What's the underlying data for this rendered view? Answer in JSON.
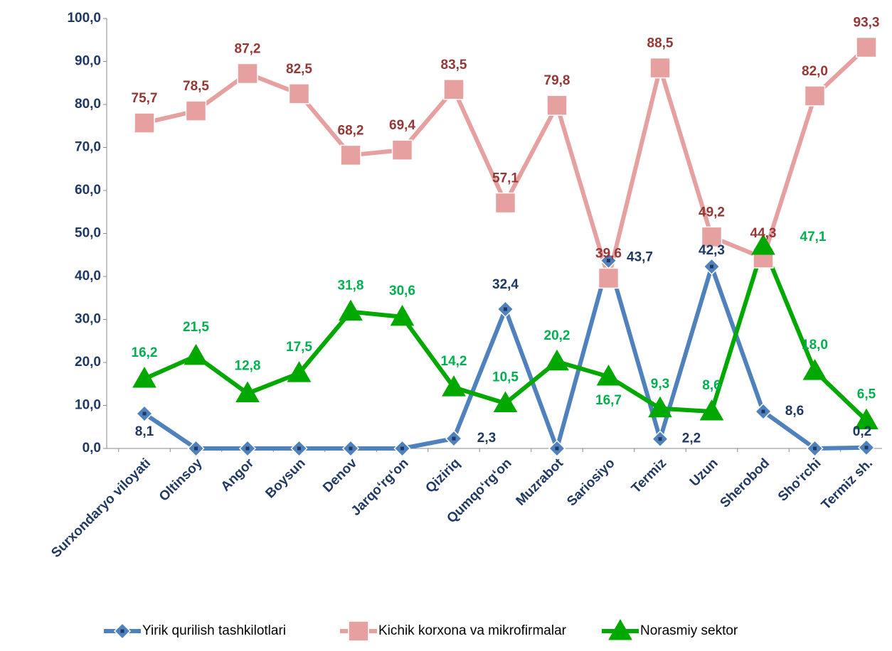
{
  "chart_data": {
    "type": "line",
    "categories": [
      "Surxondaryo viloyati",
      "Oltinsoy",
      "Angor",
      "Boysun",
      "Denov",
      "Jarqo‘rg‘on",
      "Qiziriq",
      "Qumqo‘rg‘on",
      "Muzrabot",
      "Sariosiyo",
      "Termiz",
      "Uzun",
      "Sherobod",
      "Sho‘rchi",
      "Termiz sh."
    ],
    "series": [
      {
        "name": "Yirik qurilish tashkilotlari",
        "color": "#4f81bd",
        "label_color": "#1f3864",
        "marker": "diamond",
        "values": [
          8.1,
          0,
          0,
          0,
          0,
          0,
          2.3,
          32.4,
          0,
          43.7,
          2.2,
          42.3,
          8.6,
          0,
          0.2
        ],
        "value_labels": [
          "8,1",
          null,
          null,
          null,
          null,
          null,
          "2,3",
          "32,4",
          null,
          "43,7",
          "2,2",
          "42,3",
          "8,6",
          null,
          "0,2"
        ]
      },
      {
        "name": "Kichik korxona va mikrofirmalar",
        "color": "#e6a0a0",
        "label_color": "#953735",
        "marker": "square",
        "values": [
          75.7,
          78.5,
          87.2,
          82.5,
          68.2,
          69.4,
          83.5,
          57.1,
          79.8,
          39.6,
          88.5,
          49.2,
          44.3,
          82.0,
          93.3
        ],
        "value_labels": [
          "75,7",
          "78,5",
          "87,2",
          "82,5",
          "68,2",
          "69,4",
          "83,5",
          "57,1",
          "79,8",
          "39,6",
          "88,5",
          "49,2",
          "44,3",
          "82,0",
          "93,3"
        ]
      },
      {
        "name": "Norasmiy sektor",
        "color": "#00a800",
        "label_color": "#00b050",
        "marker": "triangle",
        "values": [
          16.2,
          21.5,
          12.8,
          17.5,
          31.8,
          30.6,
          14.2,
          10.5,
          20.2,
          16.7,
          9.3,
          8.6,
          47.1,
          18.0,
          6.5
        ],
        "value_labels": [
          "16,2",
          "21,5",
          "12,8",
          "17,5",
          "31,8",
          "30,6",
          "14,2",
          "10,5",
          "20,2",
          "16,7",
          "9,3",
          "8,6",
          "47,1",
          "18,0",
          "6,5"
        ]
      }
    ],
    "ylim": [
      0,
      100
    ],
    "yticks": [
      {
        "value": 0,
        "label": "0,0"
      },
      {
        "value": 10,
        "label": "10,0"
      },
      {
        "value": 20,
        "label": "20,0"
      },
      {
        "value": 30,
        "label": "30,0"
      },
      {
        "value": 40,
        "label": "40,0"
      },
      {
        "value": 50,
        "label": "50,0"
      },
      {
        "value": 60,
        "label": "60,0"
      },
      {
        "value": 70,
        "label": "70,0"
      },
      {
        "value": 80,
        "label": "80,0"
      },
      {
        "value": 90,
        "label": "90,0"
      },
      {
        "value": 100,
        "label": "100,0"
      }
    ],
    "grid": false,
    "legend": "bottom"
  }
}
